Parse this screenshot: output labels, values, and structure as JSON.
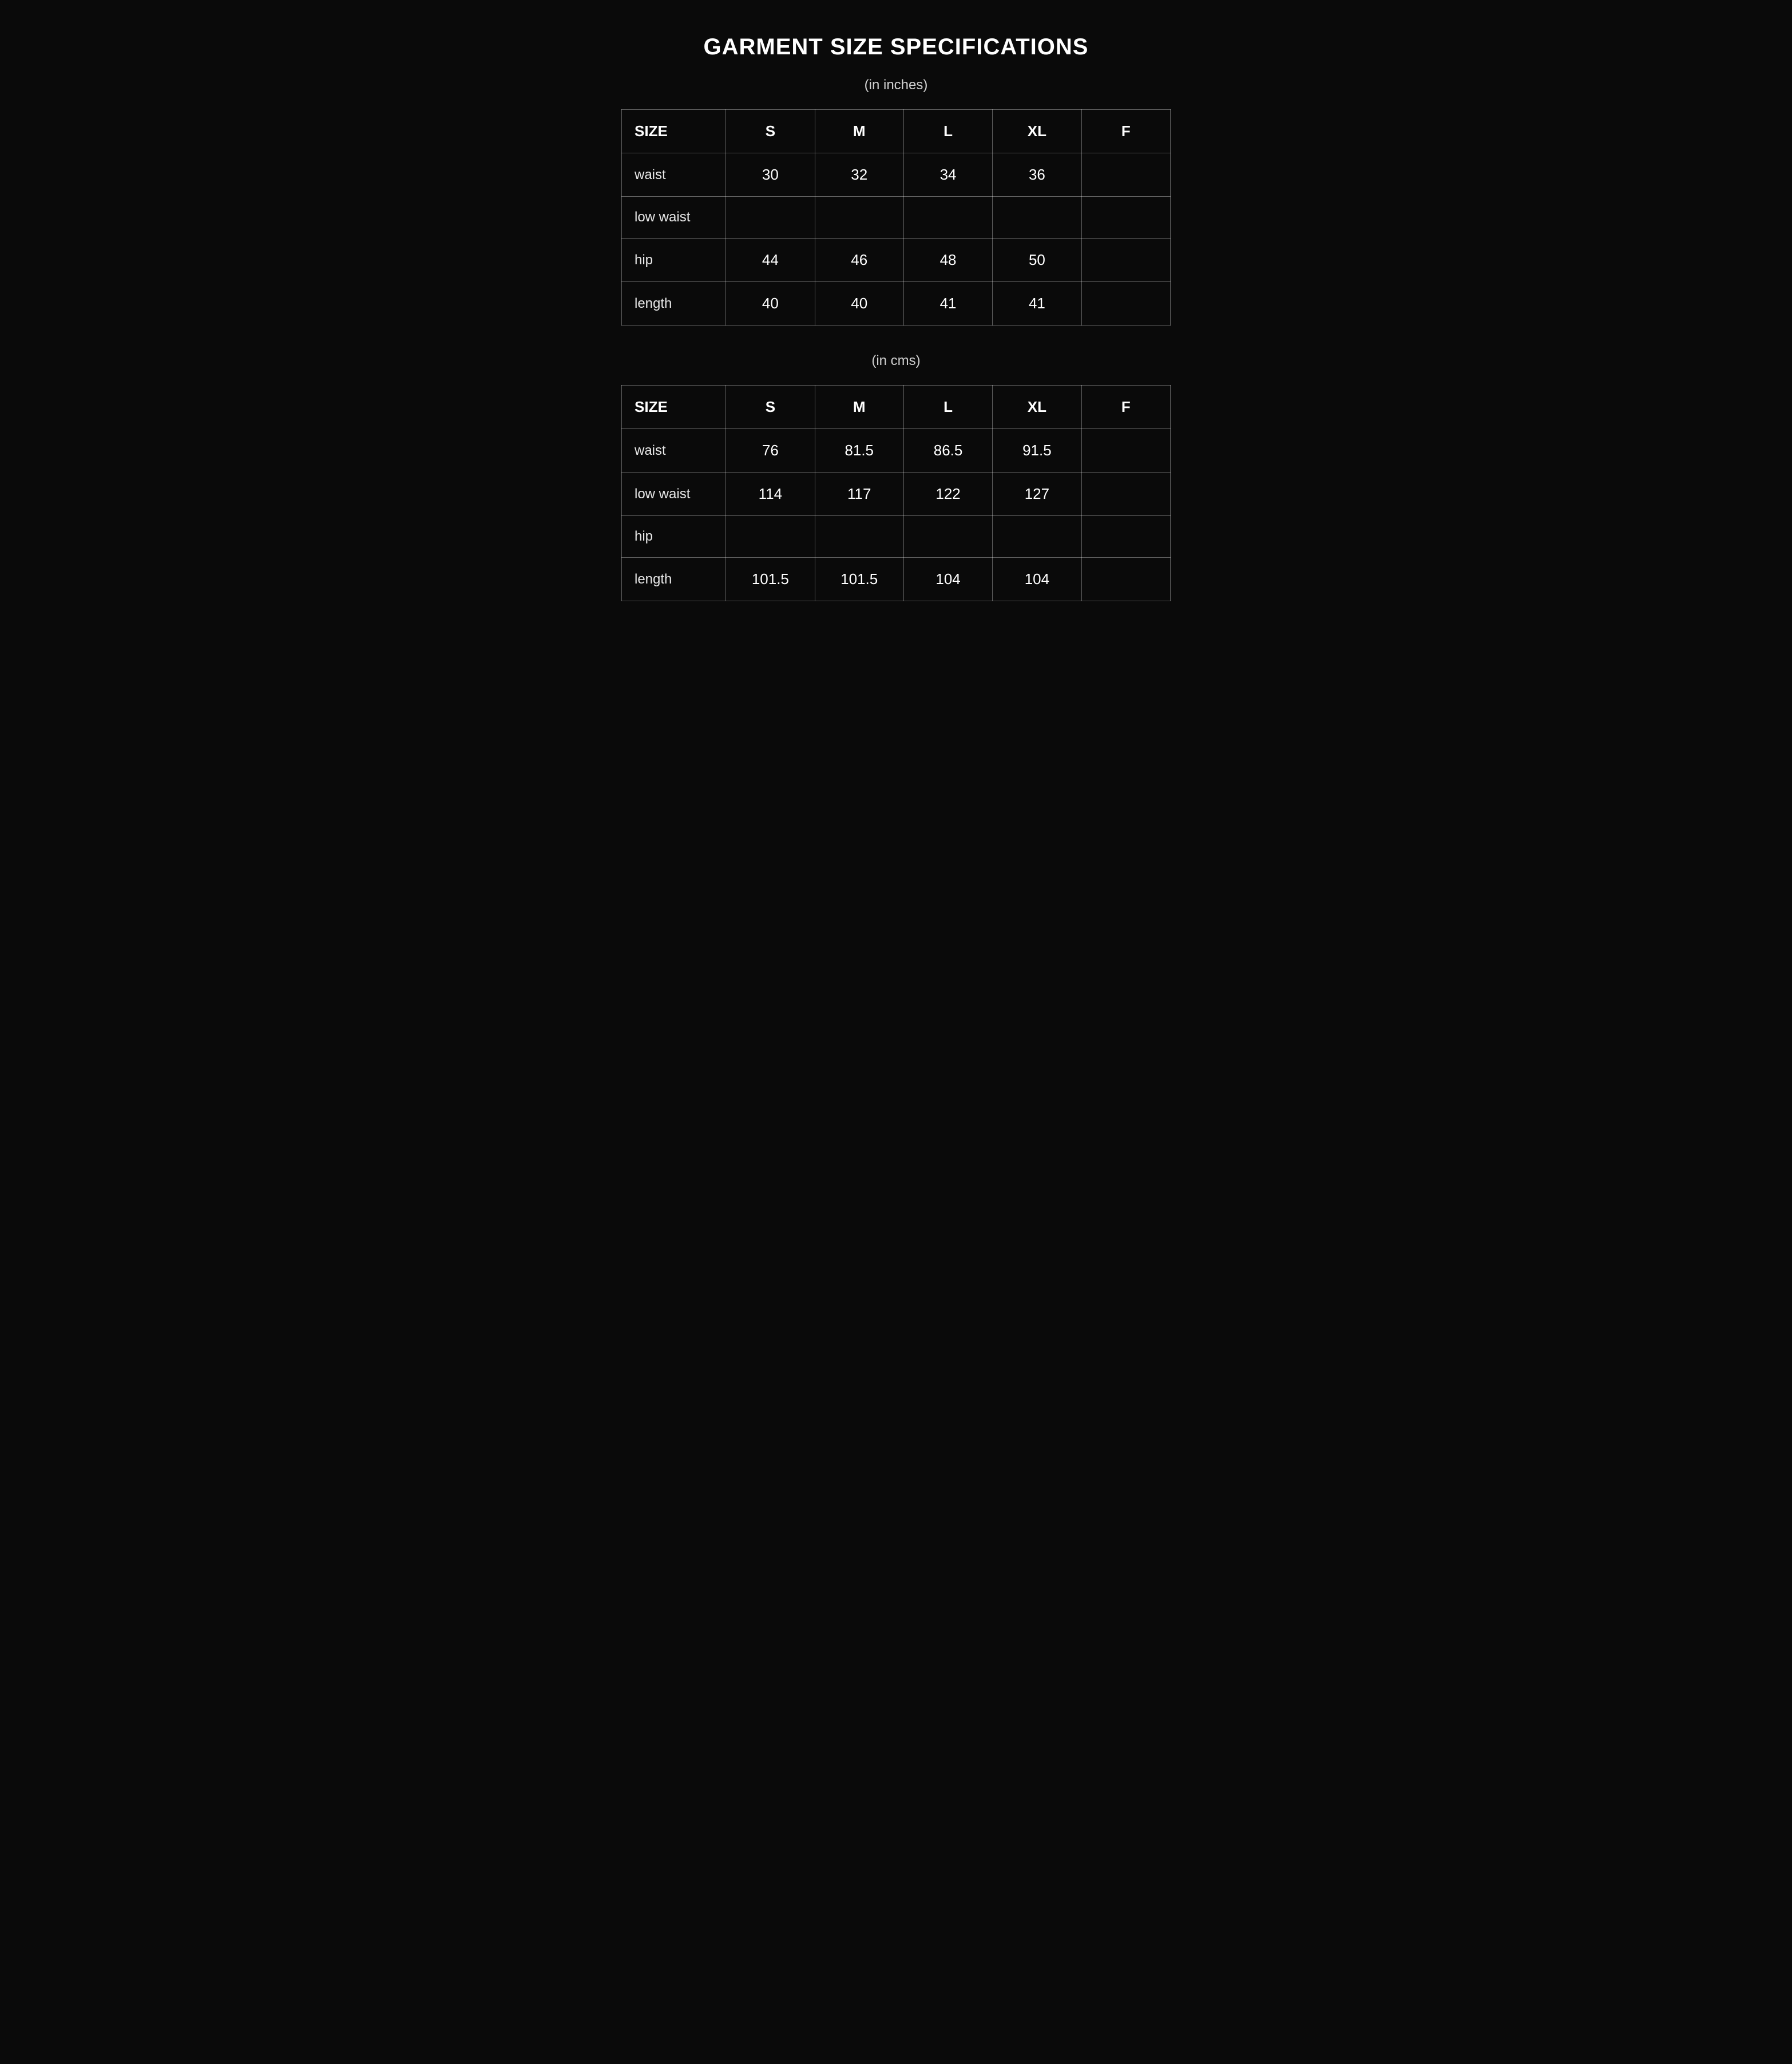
{
  "title": "GARMENT SIZE SPECIFICATIONS",
  "colors": {
    "background": "#0a0a0a",
    "text": "#ffffff",
    "muted_text": "#d0d0d0",
    "row_label_text": "#e8e8e8",
    "border": "rgba(255,255,255,0.35)"
  },
  "typography": {
    "title_fontsize_pt": 30,
    "title_weight": 700,
    "unit_label_fontsize_pt": 18,
    "header_fontsize_pt": 20,
    "cell_fontsize_pt": 20,
    "row_label_fontsize_pt": 18,
    "font_family": "sans-serif"
  },
  "tables": [
    {
      "type": "table",
      "unit_label": "(in inches)",
      "columns": [
        "SIZE",
        "S",
        "M",
        "L",
        "XL",
        "F"
      ],
      "column_widths_pct": [
        19,
        16.2,
        16.2,
        16.2,
        16.2,
        16.2
      ],
      "header_align": [
        "left",
        "center",
        "center",
        "center",
        "center",
        "center"
      ],
      "cell_align": [
        "left",
        "center",
        "center",
        "center",
        "center",
        "center"
      ],
      "rows": [
        {
          "label": "waist",
          "values": [
            "30",
            "32",
            "34",
            "36",
            ""
          ]
        },
        {
          "label": "low waist",
          "values": [
            "",
            "",
            "",
            "",
            ""
          ]
        },
        {
          "label": "hip",
          "values": [
            "44",
            "46",
            "48",
            "50",
            ""
          ]
        },
        {
          "label": "length",
          "values": [
            "40",
            "40",
            "41",
            "41",
            ""
          ]
        }
      ]
    },
    {
      "type": "table",
      "unit_label": "(in cms)",
      "columns": [
        "SIZE",
        "S",
        "M",
        "L",
        "XL",
        "F"
      ],
      "column_widths_pct": [
        19,
        16.2,
        16.2,
        16.2,
        16.2,
        16.2
      ],
      "header_align": [
        "left",
        "center",
        "center",
        "center",
        "center",
        "center"
      ],
      "cell_align": [
        "left",
        "center",
        "center",
        "center",
        "center",
        "center"
      ],
      "rows": [
        {
          "label": "waist",
          "values": [
            "76",
            "81.5",
            "86.5",
            "91.5",
            ""
          ]
        },
        {
          "label": "low waist",
          "values": [
            "114",
            "117",
            "122",
            "127",
            ""
          ]
        },
        {
          "label": "hip",
          "values": [
            "",
            "",
            "",
            "",
            ""
          ]
        },
        {
          "label": "length",
          "values": [
            "101.5",
            "101.5",
            "104",
            "104",
            ""
          ]
        }
      ]
    }
  ]
}
